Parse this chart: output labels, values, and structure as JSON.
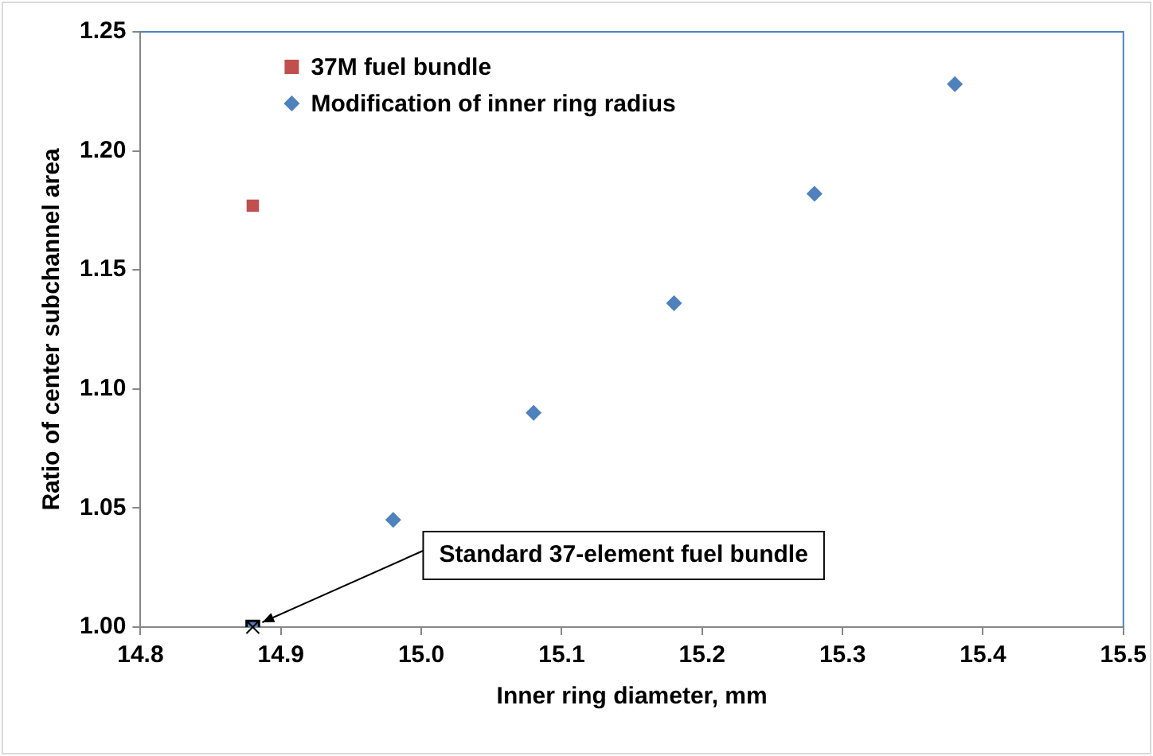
{
  "chart_data": {
    "type": "scatter",
    "xlabel": "Inner ring diameter, mm",
    "ylabel": "Ratio of center subchannel area",
    "xlim": [
      14.8,
      15.5
    ],
    "xticks": [
      14.8,
      14.9,
      {
        "value": 15,
        "label": "15.0"
      },
      15.1,
      15.2,
      15.3,
      15.4,
      15.5
    ],
    "ylim": [
      1,
      1.25
    ],
    "yticks": [
      {
        "value": 1,
        "label": "1.00"
      },
      1.05,
      {
        "value": 1.1,
        "label": "1.10"
      },
      1.15,
      {
        "value": 1.2,
        "label": "1.20"
      },
      1.25
    ],
    "grid": false,
    "legend": "top left",
    "series": [
      {
        "name": "37M fuel bundle",
        "color": "#c0504d",
        "marker": "square",
        "x": [
          14.88
        ],
        "values": [
          1.177
        ]
      },
      {
        "name": "Modification of inner ring radius",
        "color": "#4f81bd",
        "marker": "diamond",
        "x": [
          14.98,
          15.08,
          15.18,
          15.28,
          15.38
        ],
        "values": [
          1.045,
          1.09,
          1.136,
          1.182,
          1.228
        ]
      },
      {
        "color": "#4f81bd",
        "marker": "square",
        "x": [
          14.88
        ],
        "values": [
          1.0
        ]
      }
    ],
    "annotations": [
      {
        "text": "Standard 37-element fuel bundle",
        "x": 14.88,
        "y": 1.0
      }
    ]
  }
}
